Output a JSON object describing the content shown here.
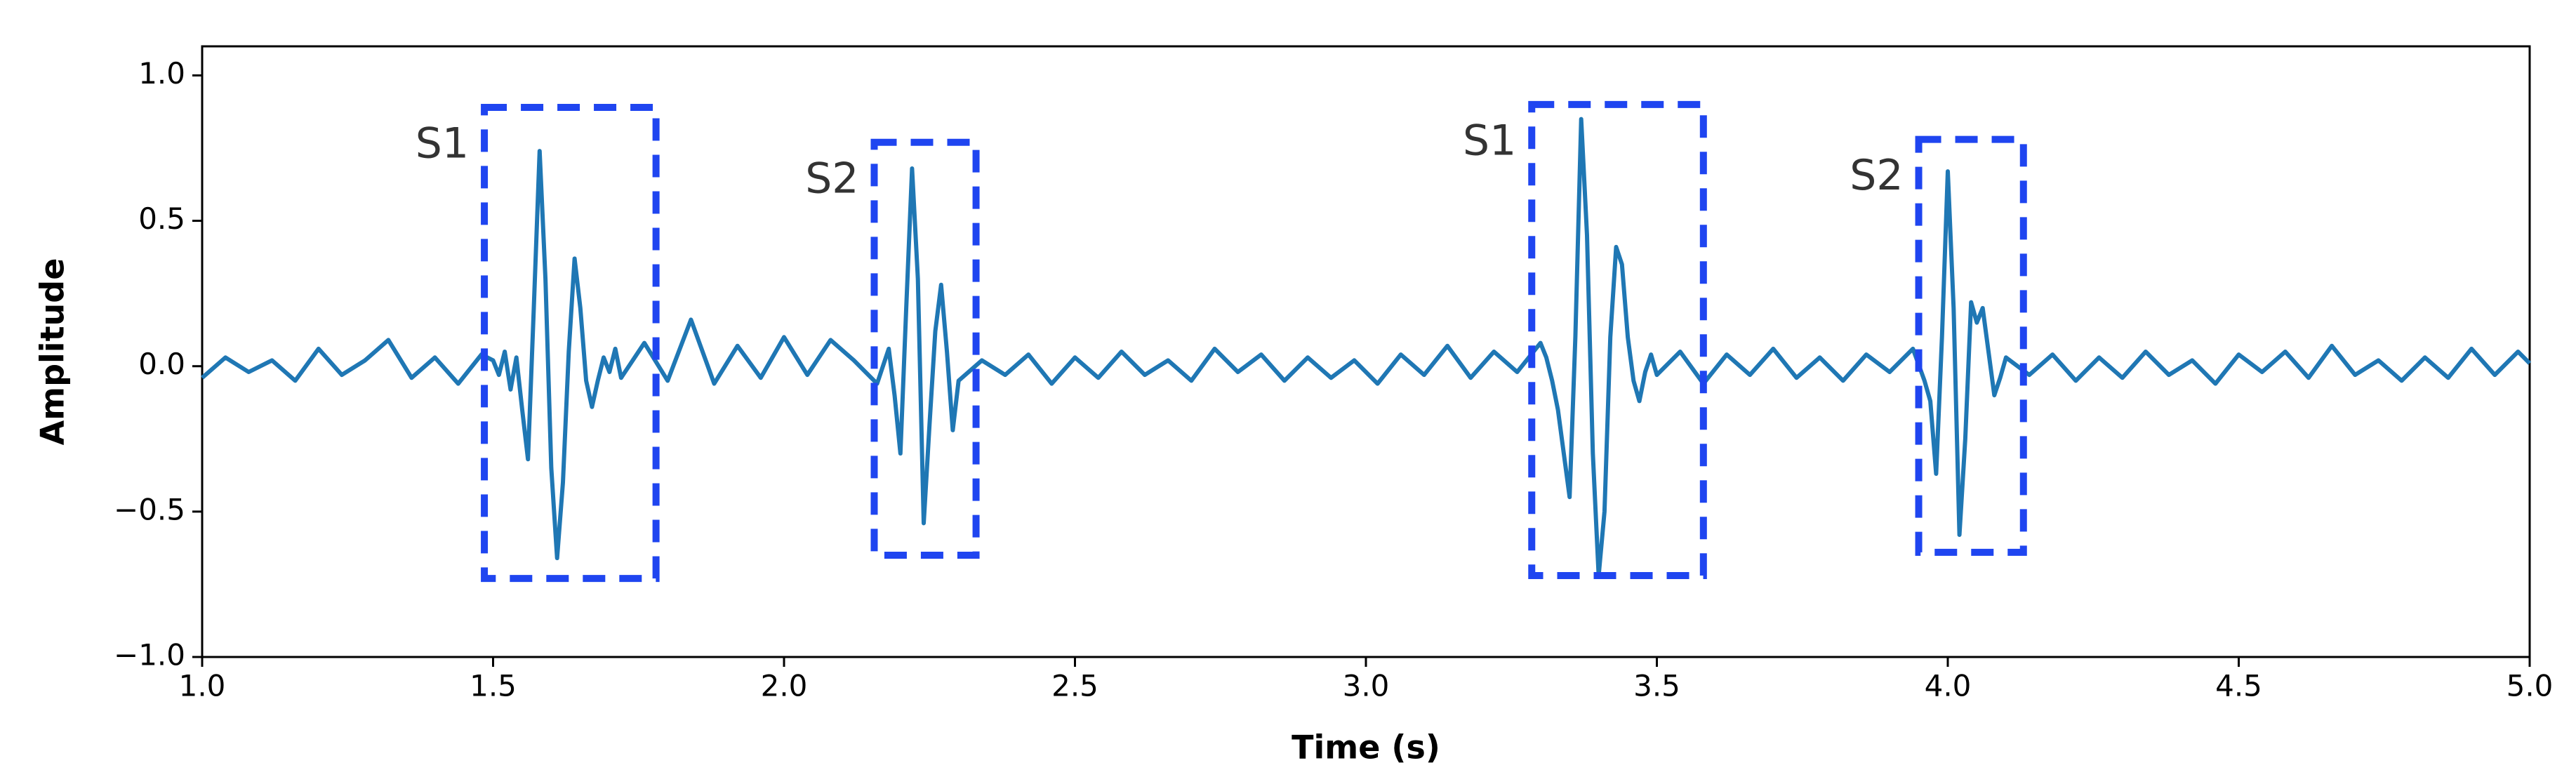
{
  "chart_data": {
    "type": "line",
    "xlabel": "Time (s)",
    "ylabel": "Amplitude",
    "xlim": [
      1,
      5
    ],
    "ylim": [
      -1,
      1.1
    ],
    "xticks": [
      {
        "value": 1,
        "label": "1.0"
      },
      1.5,
      {
        "value": 2,
        "label": "2.0"
      },
      2.5,
      {
        "value": 3,
        "label": "3.0"
      },
      3.5,
      {
        "value": 4,
        "label": "4.0"
      },
      4.5,
      {
        "value": 5,
        "label": "5.0"
      }
    ],
    "yticks": [
      {
        "value": -1,
        "label": "−1.0"
      },
      {
        "value": -0.5,
        "label": "−0.5"
      },
      {
        "value": 0,
        "label": "0.0"
      },
      0.5,
      {
        "value": 1,
        "label": "1.0"
      }
    ],
    "series": [
      {
        "color": "#1f77b4",
        "x": [
          1.0,
          1.04,
          1.08,
          1.12,
          1.16,
          1.2,
          1.24,
          1.28,
          1.32,
          1.36,
          1.4,
          1.44,
          1.48,
          1.5,
          1.51,
          1.52,
          1.53,
          1.54,
          1.55,
          1.56,
          1.57,
          1.58,
          1.59,
          1.6,
          1.61,
          1.62,
          1.63,
          1.64,
          1.65,
          1.66,
          1.67,
          1.68,
          1.69,
          1.7,
          1.71,
          1.72,
          1.76,
          1.8,
          1.84,
          1.88,
          1.92,
          1.96,
          2.0,
          2.04,
          2.08,
          2.12,
          2.16,
          2.18,
          2.19,
          2.2,
          2.21,
          2.22,
          2.23,
          2.24,
          2.25,
          2.26,
          2.27,
          2.28,
          2.29,
          2.3,
          2.34,
          2.38,
          2.42,
          2.46,
          2.5,
          2.54,
          2.58,
          2.62,
          2.66,
          2.7,
          2.74,
          2.78,
          2.82,
          2.86,
          2.9,
          2.94,
          2.98,
          3.02,
          3.06,
          3.1,
          3.14,
          3.18,
          3.22,
          3.26,
          3.3,
          3.31,
          3.32,
          3.33,
          3.34,
          3.35,
          3.36,
          3.37,
          3.38,
          3.39,
          3.4,
          3.41,
          3.42,
          3.43,
          3.44,
          3.45,
          3.46,
          3.47,
          3.48,
          3.49,
          3.5,
          3.54,
          3.58,
          3.62,
          3.66,
          3.7,
          3.74,
          3.78,
          3.82,
          3.86,
          3.9,
          3.94,
          3.96,
          3.97,
          3.98,
          3.99,
          4.0,
          4.01,
          4.02,
          4.03,
          4.04,
          4.05,
          4.06,
          4.07,
          4.08,
          4.09,
          4.1,
          4.14,
          4.18,
          4.22,
          4.26,
          4.3,
          4.34,
          4.38,
          4.42,
          4.46,
          4.5,
          4.54,
          4.58,
          4.62,
          4.66,
          4.7,
          4.74,
          4.78,
          4.82,
          4.86,
          4.9,
          4.94,
          4.98,
          5.0
        ],
        "values": [
          -0.04,
          0.03,
          -0.02,
          0.02,
          -0.05,
          0.06,
          -0.03,
          0.02,
          0.09,
          -0.04,
          0.03,
          -0.06,
          0.04,
          0.02,
          -0.03,
          0.05,
          -0.08,
          0.03,
          -0.15,
          -0.32,
          0.2,
          0.74,
          0.3,
          -0.35,
          -0.66,
          -0.4,
          0.05,
          0.37,
          0.2,
          -0.05,
          -0.14,
          -0.05,
          0.03,
          -0.02,
          0.06,
          -0.04,
          0.08,
          -0.05,
          0.16,
          -0.06,
          0.07,
          -0.04,
          0.1,
          -0.03,
          0.09,
          0.02,
          -0.06,
          0.06,
          -0.1,
          -0.3,
          0.2,
          0.68,
          0.3,
          -0.54,
          -0.2,
          0.12,
          0.28,
          0.05,
          -0.22,
          -0.05,
          0.02,
          -0.03,
          0.04,
          -0.06,
          0.03,
          -0.04,
          0.05,
          -0.03,
          0.02,
          -0.05,
          0.06,
          -0.02,
          0.04,
          -0.05,
          0.03,
          -0.04,
          0.02,
          -0.06,
          0.04,
          -0.03,
          0.07,
          -0.04,
          0.05,
          -0.02,
          0.08,
          0.03,
          -0.05,
          -0.15,
          -0.3,
          -0.45,
          0.1,
          0.85,
          0.45,
          -0.3,
          -0.72,
          -0.5,
          0.1,
          0.41,
          0.35,
          0.1,
          -0.05,
          -0.12,
          -0.02,
          0.04,
          -0.03,
          0.05,
          -0.06,
          0.04,
          -0.03,
          0.06,
          -0.04,
          0.03,
          -0.05,
          0.04,
          -0.02,
          0.06,
          -0.05,
          -0.12,
          -0.37,
          0.1,
          0.67,
          0.2,
          -0.58,
          -0.25,
          0.22,
          0.15,
          0.2,
          0.05,
          -0.1,
          -0.04,
          0.03,
          -0.03,
          0.04,
          -0.05,
          0.03,
          -0.04,
          0.05,
          -0.03,
          0.02,
          -0.06,
          0.04,
          -0.02,
          0.05,
          -0.04,
          0.07,
          -0.03,
          0.02,
          -0.05,
          0.03,
          -0.04,
          0.06,
          -0.03,
          0.05,
          0.01
        ]
      }
    ],
    "annotation_color": "#1f45f0",
    "annotations": [
      {
        "text": "S1",
        "xlim": [
          1.485,
          1.78
        ],
        "ylim": [
          -0.73,
          0.89
        ]
      },
      {
        "text": "S2",
        "xlim": [
          2.155,
          2.33
        ],
        "ylim": [
          -0.65,
          0.77
        ]
      },
      {
        "text": "S1",
        "xlim": [
          3.285,
          3.58
        ],
        "ylim": [
          -0.72,
          0.9
        ]
      },
      {
        "text": "S2",
        "xlim": [
          3.95,
          4.13
        ],
        "ylim": [
          -0.64,
          0.78
        ]
      }
    ]
  }
}
